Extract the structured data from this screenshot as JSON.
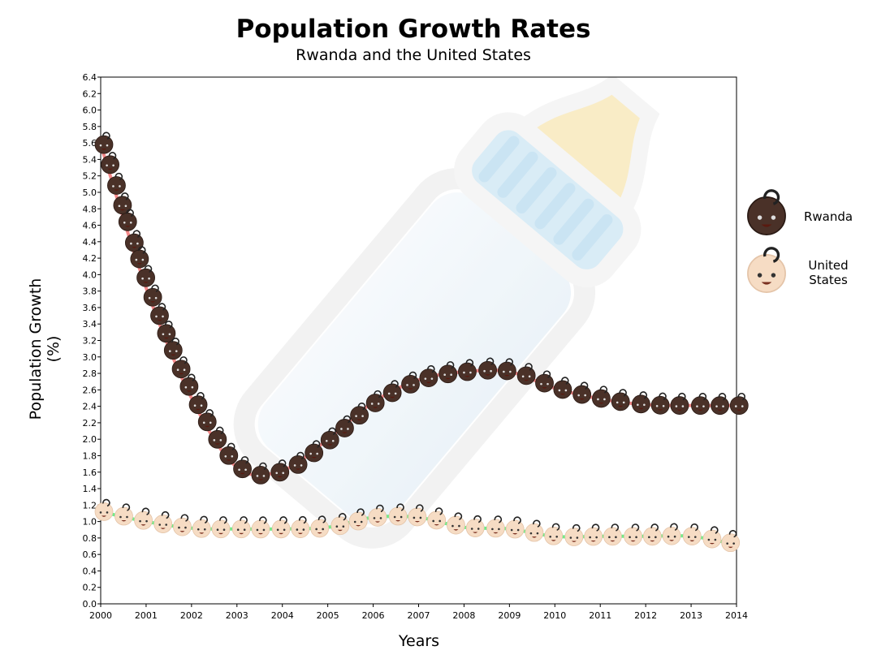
{
  "chart_data": {
    "type": "line",
    "title": "Population Growth Rates",
    "subtitle": "Rwanda and the United States",
    "xlabel": "Years",
    "ylabel": "Population Growth (%)",
    "xlim": [
      2000,
      2014
    ],
    "ylim": [
      0,
      6.4
    ],
    "x_ticks": [
      "2000",
      "2001",
      "2002",
      "2003",
      "2004",
      "2005",
      "2006",
      "2007",
      "2008",
      "2009",
      "2010",
      "2011",
      "2012",
      "2013",
      "2014"
    ],
    "y_ticks": [
      "0.0",
      "0.2",
      "0.4",
      "0.6",
      "0.8",
      "1.0",
      "1.2",
      "1.4",
      "1.6",
      "1.8",
      "2.0",
      "2.2",
      "2.4",
      "2.6",
      "2.8",
      "3.0",
      "3.2",
      "3.4",
      "3.6",
      "3.8",
      "4.0",
      "4.2",
      "4.4",
      "4.6",
      "4.8",
      "5.0",
      "5.2",
      "5.4",
      "5.6",
      "5.8",
      "6.0",
      "6.2",
      "6.4"
    ],
    "x": [
      2000,
      2001,
      2002,
      2003,
      2004,
      2005,
      2006,
      2007,
      2008,
      2009,
      2010,
      2011,
      2012,
      2013,
      2014
    ],
    "series": [
      {
        "name": "Rwanda",
        "line_color": "#f06b6b",
        "marker": "dark-skin-baby-icon",
        "values": [
          5.58,
          3.84,
          2.5,
          1.66,
          1.62,
          2.0,
          2.45,
          2.72,
          2.82,
          2.82,
          2.62,
          2.49,
          2.42,
          2.41,
          2.41
        ]
      },
      {
        "name": "United States",
        "line_color": "#4be86a",
        "marker": "light-skin-baby-icon",
        "values": [
          1.12,
          1.0,
          0.92,
          0.91,
          0.91,
          0.93,
          1.05,
          1.05,
          0.93,
          0.91,
          0.82,
          0.82,
          0.82,
          0.82,
          0.72
        ]
      }
    ],
    "legend": {
      "placement": "right",
      "items": [
        "Rwanda",
        "United States"
      ]
    },
    "background_image": "baby-bottle-icon",
    "grid": false
  }
}
